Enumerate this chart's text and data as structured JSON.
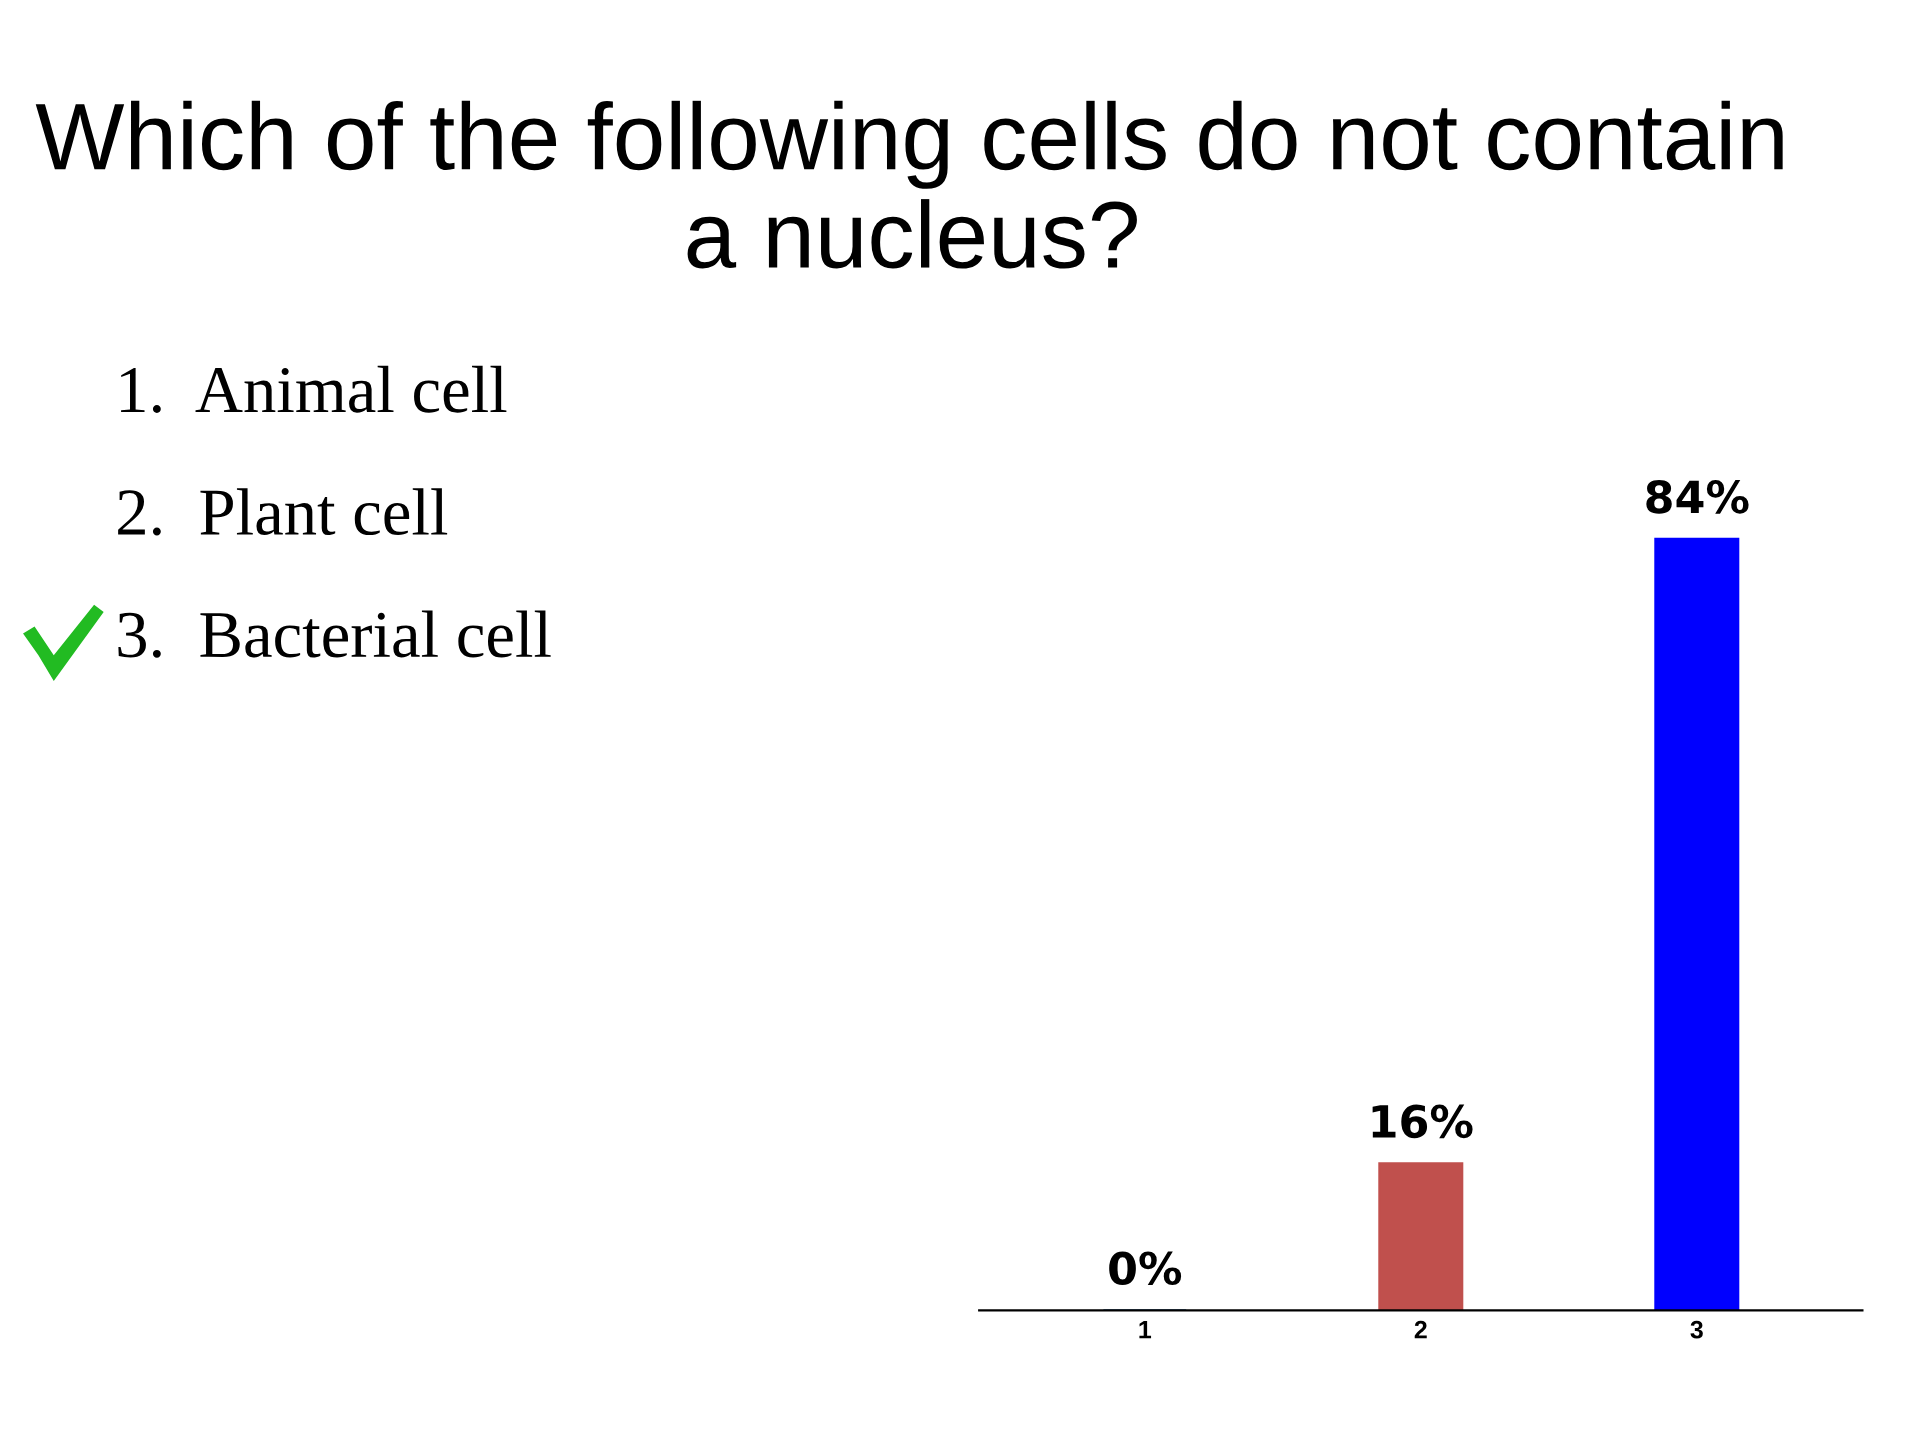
{
  "chart_data": {
    "type": "bar",
    "title": "Which of the following cells do not contain a nucleus?",
    "categories": [
      "1",
      "2",
      "3"
    ],
    "values": [
      0,
      16,
      84
    ],
    "colors": [
      "#336699",
      "#c0504d",
      "#0000ff"
    ],
    "value_labels": [
      "0%",
      "16%",
      "84%"
    ],
    "annotations": [
      "1.  Animal cell",
      "2.  Plant cell",
      "3.  Bacterial cell"
    ],
    "grid": false,
    "legend": false
  }
}
